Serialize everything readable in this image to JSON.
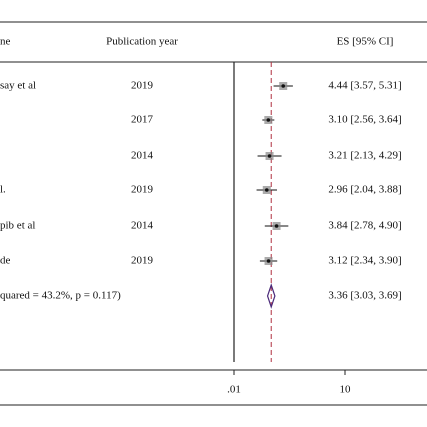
{
  "chart_data": {
    "type": "forest",
    "columns": {
      "study": "ne",
      "year": "Publication year",
      "es": "ES [95% CI]"
    },
    "studies": [
      {
        "name": "say et al",
        "year": 2019,
        "es": 4.44,
        "lo": 3.57,
        "hi": 5.31,
        "label": "4.44 [3.57, 5.31]"
      },
      {
        "name": null,
        "year": 2017,
        "es": 3.1,
        "lo": 2.56,
        "hi": 3.64,
        "label": "3.10 [2.56, 3.64]"
      },
      {
        "name": null,
        "year": 2014,
        "es": 3.21,
        "lo": 2.13,
        "hi": 4.29,
        "label": "3.21 [2.13, 4.29]"
      },
      {
        "name": "l.",
        "year": 2019,
        "es": 2.96,
        "lo": 2.04,
        "hi": 3.88,
        "label": "2.96 [2.04, 3.88]"
      },
      {
        "name": "pib et al",
        "year": 2014,
        "es": 3.84,
        "lo": 2.78,
        "hi": 4.9,
        "label": "3.84 [2.78, 4.90]"
      },
      {
        "name": "de",
        "year": 2019,
        "es": 3.12,
        "lo": 2.34,
        "hi": 3.9,
        "label": "3.12 [2.34, 3.90]"
      }
    ],
    "overall": {
      "name": "quared = 43.2%, p = 0.117)",
      "es": 3.36,
      "lo": 3.03,
      "hi": 3.69,
      "label": "3.36 [3.03, 3.69]"
    },
    "xlim": [
      0.01,
      10
    ],
    "xticks": [
      {
        "value": 0.01,
        "label": ".01"
      },
      10
    ],
    "point_color": "#888888",
    "diamond_color": "#4b2a7a",
    "reference_color": "#b03040"
  }
}
